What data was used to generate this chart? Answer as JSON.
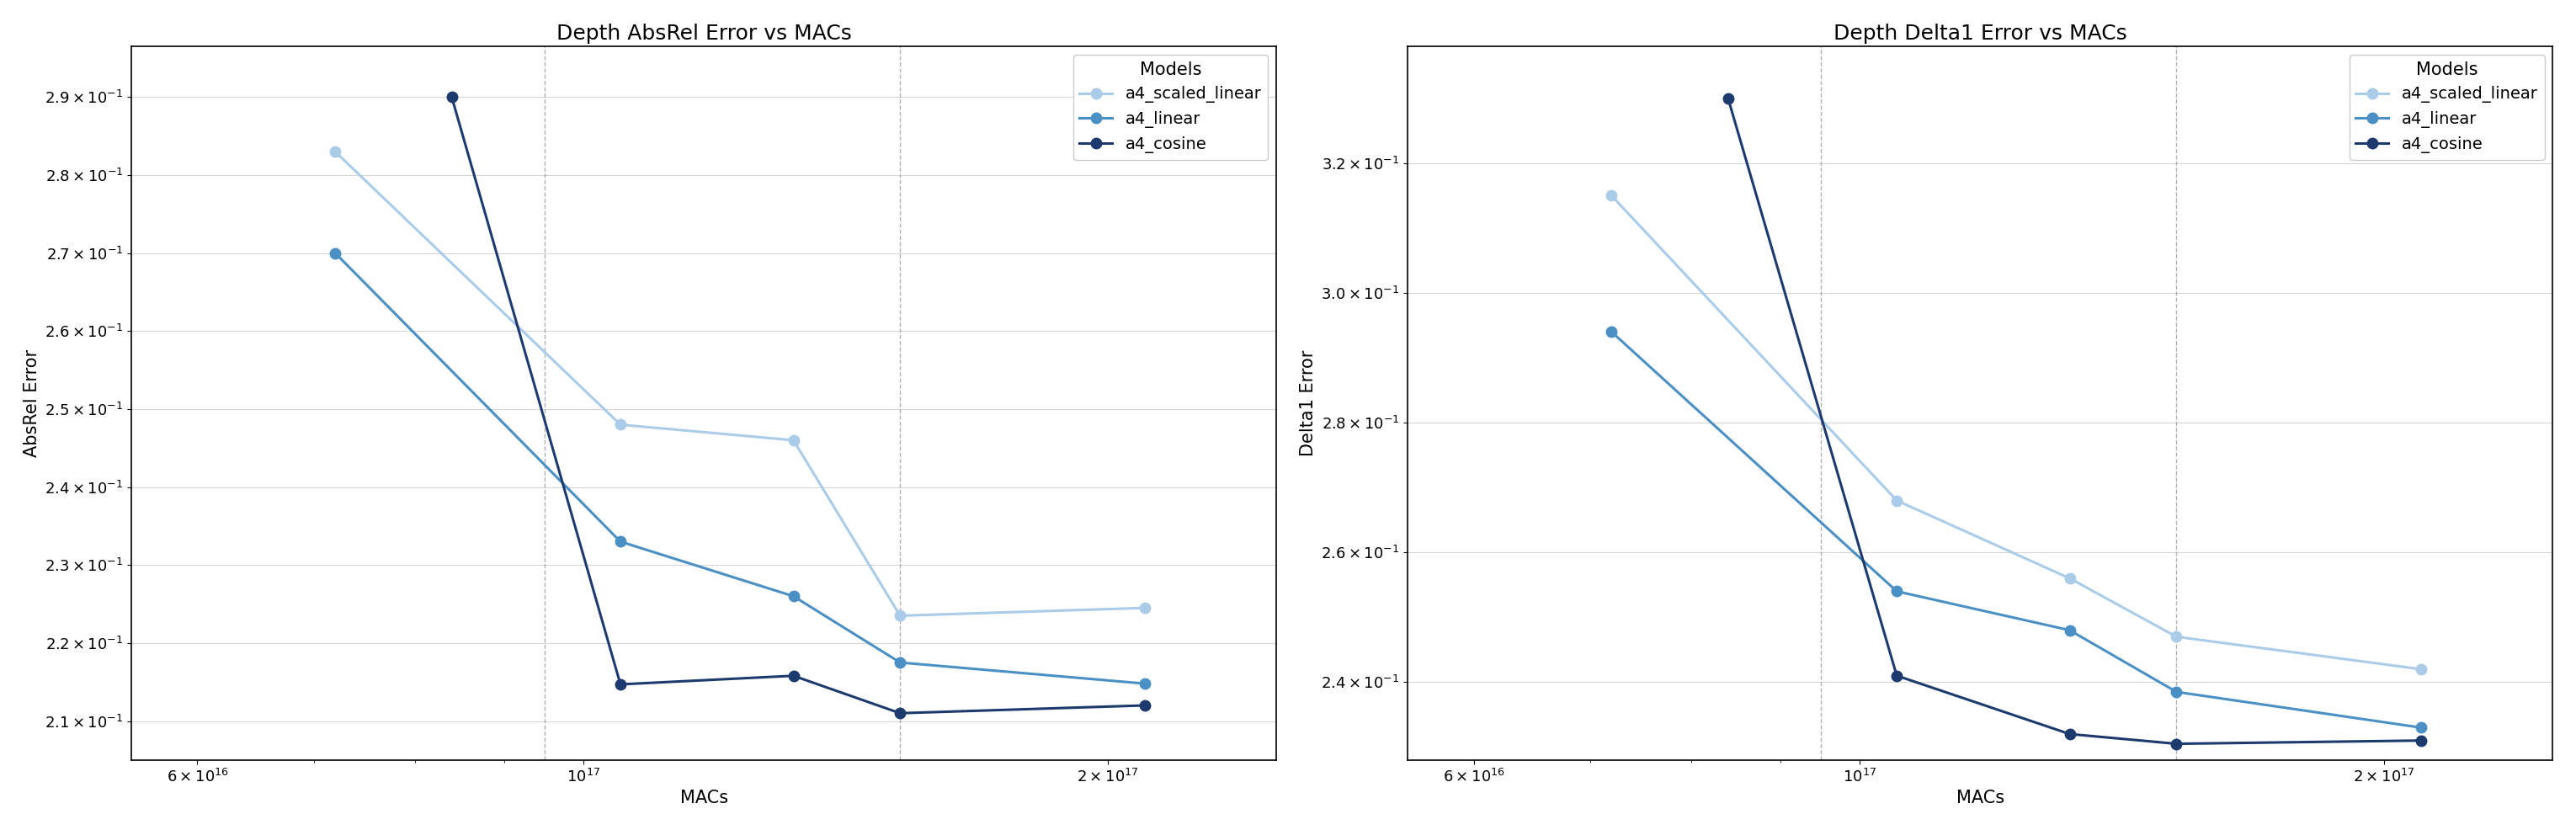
{
  "title_left": "Depth AbsRel Error vs MACs",
  "title_right": "Depth Delta1 Error vs MACs",
  "xlabel": "MACs",
  "ylabel_left": "AbsRel Error",
  "ylabel_right": "Delta1 Error",
  "legend_title": "Models",
  "models": [
    "a4_scaled_linear",
    "a4_linear",
    "a4_cosine"
  ],
  "colors": {
    "a4_scaled_linear": "#aacce8",
    "a4_linear": "#4a90c4",
    "a4_cosine": "#1c3a6e"
  },
  "absrel": {
    "a4_scaled_linear": {
      "x": [
        72000000000000000,
        105000000000000000,
        132000000000000000,
        152000000000000000,
        210000000000000000
      ],
      "y": [
        0.283,
        0.248,
        0.246,
        0.2235,
        0.2245
      ]
    },
    "a4_linear": {
      "x": [
        72000000000000000,
        105000000000000000,
        132000000000000000,
        152000000000000000,
        210000000000000000
      ],
      "y": [
        0.27,
        0.233,
        0.226,
        0.2175,
        0.2148
      ]
    },
    "a4_cosine": {
      "x": [
        84000000000000000,
        105000000000000000,
        132000000000000000,
        152000000000000000,
        210000000000000000
      ],
      "y": [
        0.29,
        0.2147,
        0.2158,
        0.211,
        0.212
      ]
    }
  },
  "delta1": {
    "a4_scaled_linear": {
      "x": [
        72000000000000000,
        105000000000000000,
        132000000000000000,
        152000000000000000,
        210000000000000000
      ],
      "y": [
        0.315,
        0.268,
        0.256,
        0.247,
        0.242
      ]
    },
    "a4_linear": {
      "x": [
        72000000000000000,
        105000000000000000,
        132000000000000000,
        152000000000000000,
        210000000000000000
      ],
      "y": [
        0.294,
        0.254,
        0.248,
        0.2385,
        0.233
      ]
    },
    "a4_cosine": {
      "x": [
        84000000000000000,
        105000000000000000,
        132000000000000000,
        152000000000000000,
        210000000000000000
      ],
      "y": [
        0.33,
        0.241,
        0.232,
        0.2305,
        0.231
      ]
    }
  },
  "vlines_absrel": [
    95000000000000000,
    152000000000000000
  ],
  "vlines_delta1": [
    95000000000000000,
    152000000000000000
  ],
  "xlim": [
    55000000000000000,
    250000000000000000
  ],
  "xticks": [
    60000000000000000,
    100000000000000000,
    200000000000000000
  ],
  "yticks_absrel": [
    0.21,
    0.22,
    0.23,
    0.24,
    0.25,
    0.26,
    0.27,
    0.28,
    0.29
  ],
  "ylim_absrel": [
    0.205,
    0.2965
  ],
  "yticks_delta1": [
    0.24,
    0.26,
    0.28,
    0.3,
    0.32
  ],
  "ylim_delta1": [
    0.228,
    0.338
  ],
  "markersize": 9,
  "linewidth": 2.2,
  "title_fontsize": 18,
  "label_fontsize": 15,
  "tick_fontsize": 13,
  "legend_fontsize": 14,
  "legend_title_fontsize": 15
}
